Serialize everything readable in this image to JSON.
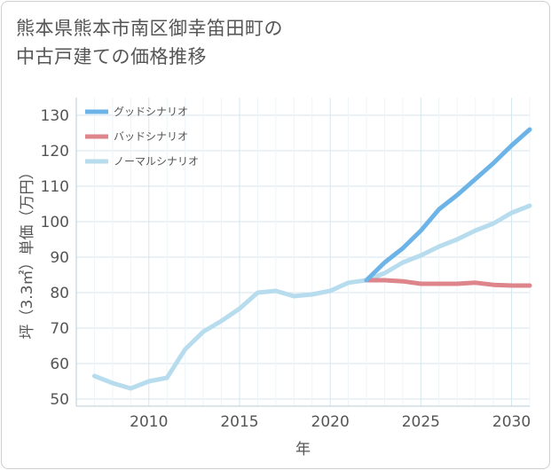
{
  "title_lines": [
    "熊本県熊本市南区御幸笛田町の",
    "中古戸建ての価格推移"
  ],
  "chart_data": {
    "type": "line",
    "xlabel": "年",
    "ylabel": "坪（3.3㎡）単価（万円）",
    "xlim": [
      2006,
      2031
    ],
    "ylim": [
      48,
      135
    ],
    "x_ticks": [
      2010,
      2015,
      2020,
      2025,
      2030
    ],
    "y_ticks": [
      50,
      60,
      70,
      80,
      90,
      100,
      110,
      120,
      130
    ],
    "grid": true,
    "legend_position": "top-left",
    "series": [
      {
        "name": "グッドシナリオ",
        "color": "#6cb4e8",
        "x": [
          2022,
          2023,
          2024,
          2025,
          2026,
          2027,
          2028,
          2029,
          2030,
          2031
        ],
        "y": [
          83.5,
          88.5,
          92.5,
          97.5,
          103.5,
          107.5,
          112.0,
          116.5,
          121.5,
          126.0
        ]
      },
      {
        "name": "バッドシナリオ",
        "color": "#dd858a",
        "x": [
          2022,
          2023,
          2024,
          2025,
          2026,
          2027,
          2028,
          2029,
          2030,
          2031
        ],
        "y": [
          83.5,
          83.5,
          83.2,
          82.5,
          82.5,
          82.5,
          82.8,
          82.2,
          82.0,
          82.0
        ]
      },
      {
        "name": "ノーマルシナリオ",
        "color": "#b7dcee",
        "x": [
          2007,
          2008,
          2009,
          2010,
          2011,
          2012,
          2013,
          2014,
          2015,
          2016,
          2017,
          2018,
          2019,
          2020,
          2021,
          2022,
          2023,
          2024,
          2025,
          2026,
          2027,
          2028,
          2029,
          2030,
          2031
        ],
        "y": [
          56.5,
          54.5,
          53.0,
          55.0,
          56.0,
          64.0,
          69.0,
          72.0,
          75.5,
          80.0,
          80.5,
          79.0,
          79.5,
          80.5,
          82.8,
          83.5,
          85.5,
          88.5,
          90.5,
          93.0,
          95.0,
          97.5,
          99.5,
          102.5,
          104.5
        ]
      }
    ]
  }
}
